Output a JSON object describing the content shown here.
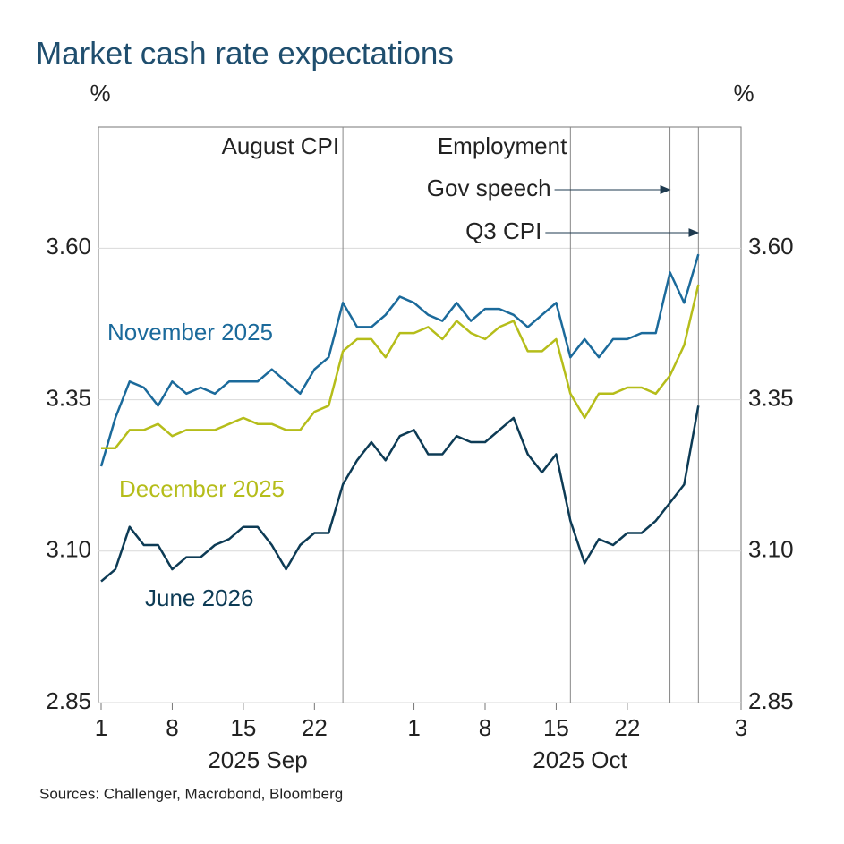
{
  "chart_data": {
    "type": "line",
    "title": "Market cash rate expectations",
    "y_label": "%",
    "y2_label": "%",
    "source": "Sources: Challenger, Macrobond, Bloomberg",
    "categories": [
      "1",
      null,
      null,
      null,
      null,
      "8",
      null,
      null,
      null,
      null,
      "15",
      null,
      null,
      null,
      null,
      "22",
      null,
      null,
      null,
      null,
      null,
      null,
      "1",
      null,
      null,
      null,
      null,
      "8",
      null,
      null,
      null,
      null,
      "15",
      null,
      null,
      null,
      null,
      "22",
      null,
      null,
      null,
      null,
      null,
      null,
      null,
      "3"
    ],
    "x_groups": [
      "2025 Sep",
      "2025 Oct"
    ],
    "ylim": [
      2.85,
      3.8
    ],
    "yticks": [
      2.85,
      {
        "value": 3.1,
        "label": "3.10"
      },
      3.35,
      {
        "value": 3.6,
        "label": "3.60"
      }
    ],
    "grid": true,
    "series": [
      {
        "name": "November 2025",
        "color": "#1b6a9b",
        "values": [
          3.24,
          3.32,
          3.38,
          3.37,
          3.34,
          3.38,
          3.36,
          3.37,
          3.36,
          3.38,
          3.38,
          3.38,
          3.4,
          3.38,
          3.36,
          3.4,
          3.42,
          3.51,
          3.47,
          3.47,
          3.49,
          3.52,
          3.51,
          3.49,
          3.48,
          3.51,
          3.48,
          3.5,
          3.5,
          3.49,
          3.47,
          3.49,
          3.51,
          3.42,
          3.45,
          3.42,
          3.45,
          3.45,
          3.46,
          3.46,
          3.56,
          3.51,
          3.59,
          null,
          null,
          null
        ]
      },
      {
        "name": "December 2025",
        "color": "#b5bd1a",
        "values": [
          3.27,
          3.27,
          3.3,
          3.3,
          3.31,
          3.29,
          3.3,
          3.3,
          3.3,
          3.31,
          3.32,
          3.31,
          3.31,
          3.3,
          3.3,
          3.33,
          3.34,
          3.43,
          3.45,
          3.45,
          3.42,
          3.46,
          3.46,
          3.47,
          3.45,
          3.48,
          3.46,
          3.45,
          3.47,
          3.48,
          3.43,
          3.43,
          3.45,
          3.36,
          3.32,
          3.36,
          3.36,
          3.37,
          3.37,
          3.36,
          3.39,
          3.44,
          3.54,
          null,
          null,
          null
        ]
      },
      {
        "name": "June 2026",
        "color": "#0d3b55",
        "values": [
          3.05,
          3.07,
          3.14,
          3.11,
          3.11,
          3.07,
          3.09,
          3.09,
          3.11,
          3.12,
          3.14,
          3.14,
          3.11,
          3.07,
          3.11,
          3.13,
          3.13,
          3.21,
          3.25,
          3.28,
          3.25,
          3.29,
          3.3,
          3.26,
          3.26,
          3.29,
          3.28,
          3.28,
          3.3,
          3.32,
          3.26,
          3.23,
          3.26,
          3.15,
          3.08,
          3.12,
          3.11,
          3.13,
          3.13,
          3.15,
          3.18,
          3.21,
          3.34,
          null,
          null,
          null
        ]
      }
    ],
    "annotations": [
      {
        "text": "August CPI",
        "x": 17,
        "arrow": false
      },
      {
        "text": "Employment",
        "x": 33,
        "arrow": false
      },
      {
        "text": "Gov speech",
        "x": 40,
        "arrow": true
      },
      {
        "text": "Q3 CPI",
        "x": 42,
        "arrow": true
      }
    ]
  }
}
